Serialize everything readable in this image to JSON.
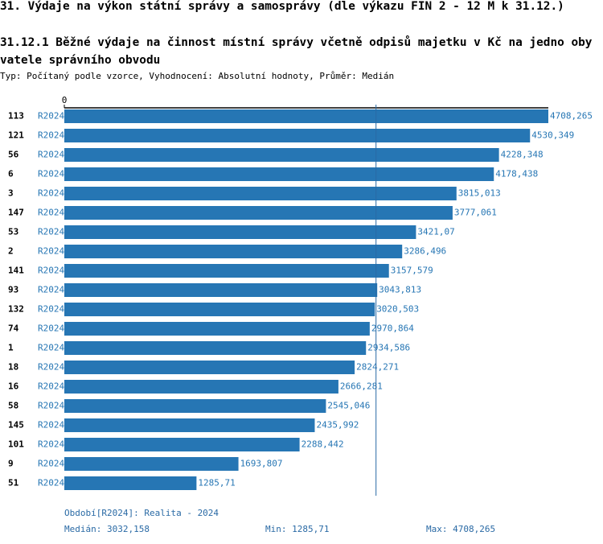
{
  "chart_data": {
    "type": "bar",
    "title": "31. Výdaje na výkon státní správy a samosprávy (dle výkazu FIN 2 - 12 M k 31.12.)",
    "subtitle": "31.12.1 Běžné výdaje na činnost místní správy včetně odpisů majetku v Kč na jedno obyvatele správního obvodu",
    "note": "Typ: Počítaný podle vzorce, Vyhodnocení: Absolutní hodnoty, Průměr: Medián",
    "categories": [
      "113",
      "121",
      "56",
      "6",
      "3",
      "147",
      "53",
      "2",
      "141",
      "93",
      "132",
      "74",
      "1",
      "18",
      "16",
      "58",
      "145",
      "101",
      "9",
      "51"
    ],
    "series": [
      {
        "name": "R2024",
        "color": "#2676b4",
        "values": [
          4708.265,
          4530.349,
          4228.348,
          4178.438,
          3815.013,
          3777.061,
          3421.07,
          3286.496,
          3157.579,
          3043.813,
          3020.503,
          2970.864,
          2934.586,
          2824.271,
          2666.281,
          2545.046,
          2435.992,
          2288.442,
          1693.807,
          1285.71
        ],
        "value_labels": [
          "4708,265",
          "4530,349",
          "4228,348",
          "4178,438",
          "3815,013",
          "3777,061",
          "3421,07",
          "3286,496",
          "3157,579",
          "3043,813",
          "3020,503",
          "2970,864",
          "2934,586",
          "2824,271",
          "2666,281",
          "2545,046",
          "2435,992",
          "2288,442",
          "1693,807",
          "1285,71"
        ]
      }
    ],
    "xlim": [
      0,
      4708.265
    ],
    "xticks": [
      0
    ],
    "period": "Období[R2024]: Realita - 2024",
    "median": {
      "value": 3032.158,
      "label": "Medián: 3032,158"
    },
    "min": {
      "value": 1285.71,
      "label": "Min: 1285,71"
    },
    "max": {
      "value": 4708.265,
      "label": "Max: 4708,265"
    }
  }
}
